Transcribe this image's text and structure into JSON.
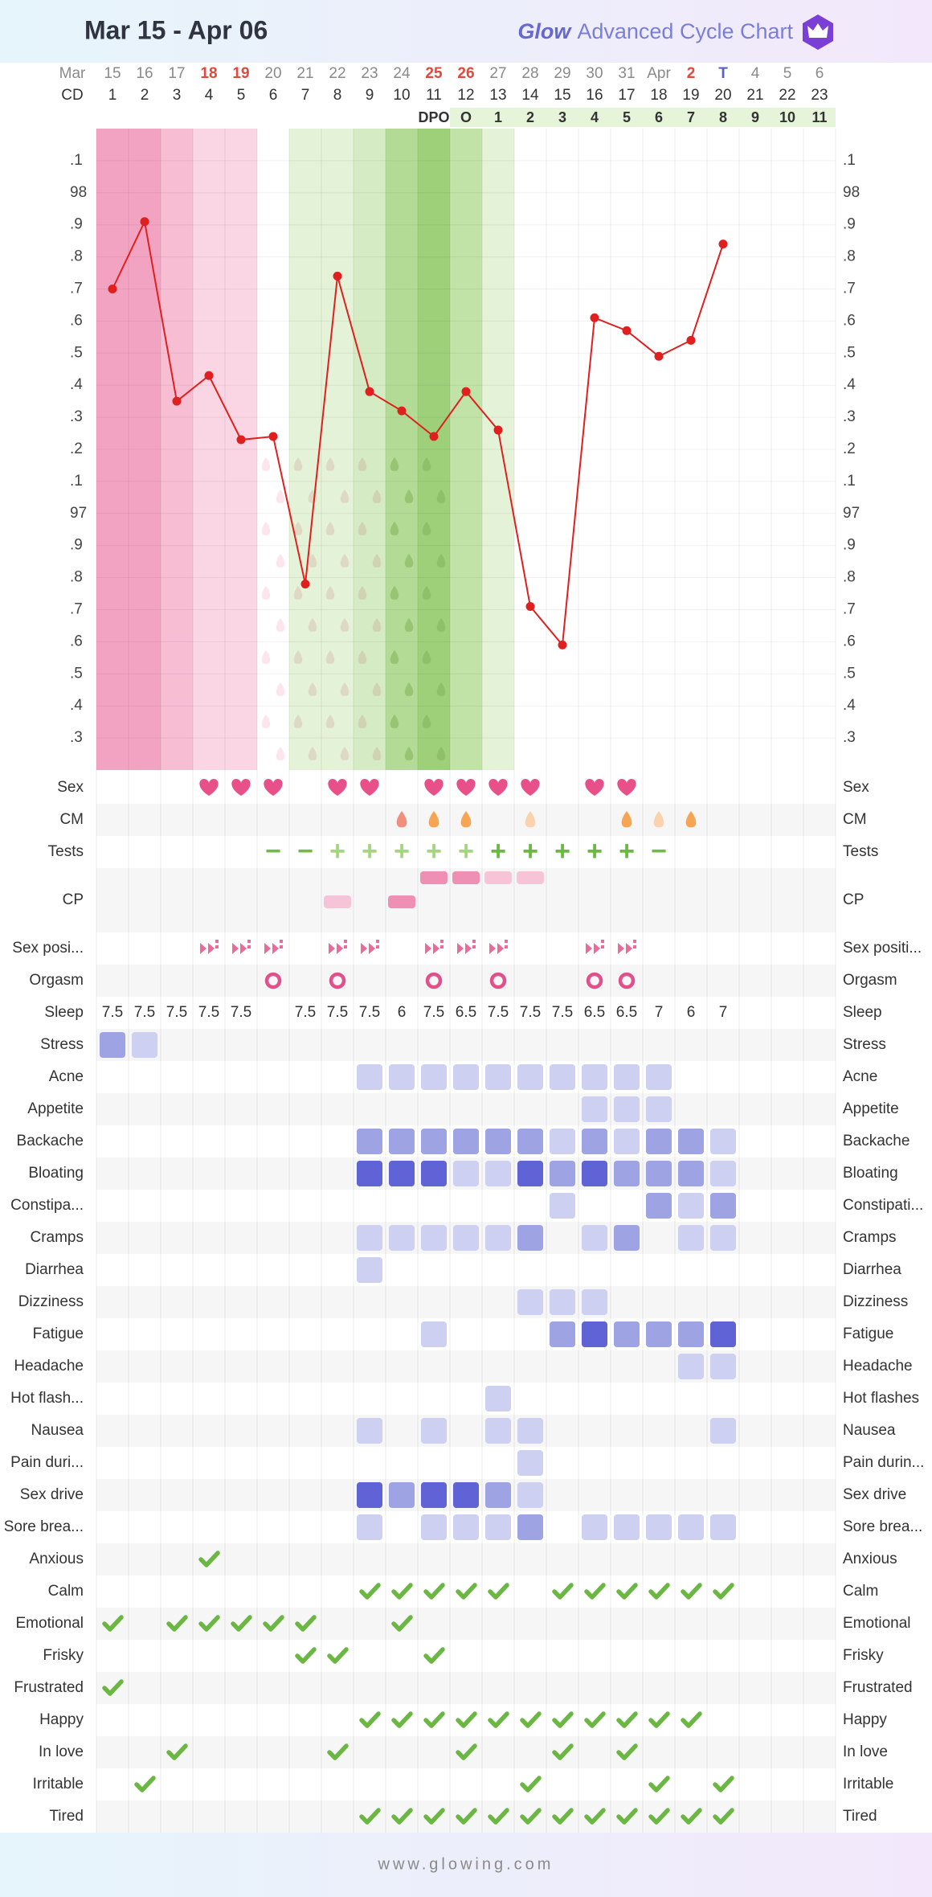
{
  "header": {
    "title": "Mar 15 - Apr 06",
    "brand": "Glow",
    "subtitle": "Advanced Cycle Chart"
  },
  "footer": "www.glowing.com",
  "columns": {
    "month_label": "Mar",
    "dates": [
      "15",
      "16",
      "17",
      "18",
      "19",
      "20",
      "21",
      "22",
      "23",
      "24",
      "25",
      "26",
      "27",
      "28",
      "29",
      "30",
      "31",
      "Apr",
      "2",
      "T",
      "4",
      "5",
      "6"
    ],
    "date_colors": [
      "#8a8a8a",
      "#8a8a8a",
      "#8a8a8a",
      "#e2483b",
      "#e2483b",
      "#8a8a8a",
      "#8a8a8a",
      "#8a8a8a",
      "#8a8a8a",
      "#8a8a8a",
      "#e2483b",
      "#e2483b",
      "#8a8a8a",
      "#8a8a8a",
      "#8a8a8a",
      "#8a8a8a",
      "#8a8a8a",
      "#8a8a8a",
      "#e2483b",
      "#5b5fc7",
      "#8a8a8a",
      "#8a8a8a",
      "#8a8a8a"
    ],
    "cd_label": "CD",
    "cd": [
      1,
      2,
      3,
      4,
      5,
      6,
      7,
      8,
      9,
      10,
      11,
      12,
      13,
      14,
      15,
      16,
      17,
      18,
      19,
      20,
      21,
      22,
      23
    ],
    "dpo_label": "DPO",
    "dpo": [
      null,
      null,
      null,
      null,
      null,
      null,
      null,
      null,
      null,
      null,
      null,
      "O",
      1,
      2,
      3,
      4,
      5,
      6,
      7,
      8,
      9,
      10,
      11
    ]
  },
  "chart_data": {
    "type": "line",
    "color": "#e01f1f",
    "values": [
      97.7,
      97.91,
      97.35,
      97.43,
      97.23,
      97.24,
      96.78,
      97.74,
      97.38,
      97.32,
      97.24,
      97.38,
      97.26,
      96.71,
      96.59,
      97.61,
      97.57,
      97.49,
      97.54,
      97.84,
      null,
      null,
      null
    ],
    "ylim": [
      96.2,
      98.2
    ],
    "yticks": [
      {
        "value": 98.1,
        "label": ".1"
      },
      98,
      {
        "value": 97.9,
        "label": ".9"
      },
      {
        "value": 97.8,
        "label": ".8"
      },
      {
        "value": 97.7,
        "label": ".7"
      },
      {
        "value": 97.6,
        "label": ".6"
      },
      {
        "value": 97.5,
        "label": ".5"
      },
      {
        "value": 97.4,
        "label": ".4"
      },
      {
        "value": 97.3,
        "label": ".3"
      },
      {
        "value": 97.2,
        "label": ".2"
      },
      {
        "value": 97.1,
        "label": ".1"
      },
      97,
      {
        "value": 96.9,
        "label": ".9"
      },
      {
        "value": 96.8,
        "label": ".8"
      },
      {
        "value": 96.7,
        "label": ".7"
      },
      {
        "value": 96.6,
        "label": ".6"
      },
      {
        "value": 96.5,
        "label": ".5"
      },
      {
        "value": 96.4,
        "label": ".4"
      },
      {
        "value": 96.3,
        "label": ".3"
      }
    ],
    "grid": true,
    "phase_colors": [
      "#f3a3c2",
      "#f3a3c2",
      "#f6bdd3",
      "#fad5e3",
      "#fad5e3",
      null,
      "#e4f2d7",
      "#e4f2d7",
      "#d5ebc3",
      "#b3db96",
      "#9dd079",
      "#c1e3a7",
      "#e4f2d7",
      null,
      null,
      null,
      null,
      null,
      null,
      null,
      null,
      null,
      null
    ]
  },
  "sex": {
    "left": "Sex",
    "right": "Sex",
    "color": "#e8508a",
    "days": [
      4,
      5,
      6,
      8,
      9,
      11,
      12,
      13,
      14,
      16,
      17
    ]
  },
  "cm": {
    "left": "CM",
    "right": "CM",
    "entries": [
      {
        "day": 10,
        "color": "#f0907c"
      },
      {
        "day": 11,
        "color": "#f5a553"
      },
      {
        "day": 12,
        "color": "#f5a553"
      },
      {
        "day": 14,
        "color": "#fad2ae"
      },
      {
        "day": 17,
        "color": "#f5a553"
      },
      {
        "day": 18,
        "color": "#fad2ae"
      },
      {
        "day": 19,
        "color": "#f5a553"
      }
    ]
  },
  "tests": {
    "left": "Tests",
    "right": "Tests",
    "entries": [
      {
        "day": 6,
        "sign": "−",
        "color": "#74b84a"
      },
      {
        "day": 7,
        "sign": "−",
        "color": "#74b84a"
      },
      {
        "day": 8,
        "sign": "+",
        "color": "#a5d57f"
      },
      {
        "day": 9,
        "sign": "+",
        "color": "#a5d57f"
      },
      {
        "day": 10,
        "sign": "+",
        "color": "#a5d57f"
      },
      {
        "day": 11,
        "sign": "+",
        "color": "#a5d57f"
      },
      {
        "day": 12,
        "sign": "+",
        "color": "#a5d57f"
      },
      {
        "day": 13,
        "sign": "+",
        "color": "#6ab842"
      },
      {
        "day": 14,
        "sign": "+",
        "color": "#6ab842"
      },
      {
        "day": 15,
        "sign": "+",
        "color": "#6ab842"
      },
      {
        "day": 16,
        "sign": "+",
        "color": "#6ab842"
      },
      {
        "day": 17,
        "sign": "+",
        "color": "#6ab842"
      },
      {
        "day": 18,
        "sign": "−",
        "color": "#74b84a"
      }
    ]
  },
  "cp": {
    "left": "CP",
    "right": "CP",
    "entries": [
      {
        "day": 8,
        "level": 1,
        "color": "#f7c4d7"
      },
      {
        "day": 10,
        "level": 1,
        "color": "#ef8fb4"
      },
      {
        "day": 11,
        "level": 2,
        "color": "#ef8fb4"
      },
      {
        "day": 12,
        "level": 2,
        "color": "#ef8fb4"
      },
      {
        "day": 13,
        "level": 2,
        "color": "#f7c4d7"
      },
      {
        "day": 14,
        "level": 2,
        "color": "#f7c4d7"
      }
    ]
  },
  "sex_positions": {
    "left": "Sex posi...",
    "right": "Sex positi...",
    "color": "#e8508a",
    "days": [
      4,
      5,
      6,
      8,
      9,
      11,
      12,
      13,
      16,
      17
    ]
  },
  "orgasm": {
    "left": "Orgasm",
    "right": "Orgasm",
    "color": "#e0508a",
    "days": [
      6,
      8,
      11,
      13,
      16,
      17
    ]
  },
  "sleep": {
    "left": "Sleep",
    "right": "Sleep",
    "values": [
      7.5,
      7.5,
      7.5,
      7.5,
      7.5,
      null,
      7.5,
      7.5,
      7.5,
      6,
      7.5,
      6.5,
      7.5,
      7.5,
      7.5,
      6.5,
      6.5,
      7,
      6,
      7,
      null,
      null,
      null
    ]
  },
  "symptom_colors": [
    "#cdd0f0",
    "#9ea3e3",
    "#5f63d6"
  ],
  "symptoms": [
    {
      "left": "Stress",
      "right": "Stress",
      "values": [
        2,
        1,
        null,
        null,
        null,
        null,
        null,
        null,
        null,
        null,
        null,
        null,
        null,
        null,
        null,
        null,
        null,
        null,
        null,
        null,
        null,
        null,
        null
      ]
    },
    {
      "left": "Acne",
      "right": "Acne",
      "values": [
        null,
        null,
        null,
        null,
        null,
        null,
        null,
        null,
        1,
        1,
        1,
        1,
        1,
        1,
        1,
        1,
        1,
        1,
        null,
        null,
        null,
        null,
        null
      ]
    },
    {
      "left": "Appetite",
      "right": "Appetite",
      "values": [
        null,
        null,
        null,
        null,
        null,
        null,
        null,
        null,
        null,
        null,
        null,
        null,
        null,
        null,
        null,
        1,
        1,
        1,
        null,
        null,
        null,
        null,
        null
      ]
    },
    {
      "left": "Backache",
      "right": "Backache",
      "values": [
        null,
        null,
        null,
        null,
        null,
        null,
        null,
        null,
        2,
        2,
        2,
        2,
        2,
        2,
        1,
        2,
        1,
        2,
        2,
        1,
        null,
        null,
        null
      ]
    },
    {
      "left": "Bloating",
      "right": "Bloating",
      "values": [
        null,
        null,
        null,
        null,
        null,
        null,
        null,
        null,
        3,
        3,
        3,
        1,
        1,
        3,
        2,
        3,
        2,
        2,
        2,
        1,
        null,
        null,
        null
      ]
    },
    {
      "left": "Constipa...",
      "right": "Constipati...",
      "values": [
        null,
        null,
        null,
        null,
        null,
        null,
        null,
        null,
        null,
        null,
        null,
        null,
        null,
        null,
        1,
        null,
        null,
        2,
        1,
        2,
        null,
        null,
        null
      ]
    },
    {
      "left": "Cramps",
      "right": "Cramps",
      "values": [
        null,
        null,
        null,
        null,
        null,
        null,
        null,
        null,
        1,
        1,
        1,
        1,
        1,
        2,
        null,
        1,
        2,
        null,
        1,
        1,
        null,
        null,
        null
      ]
    },
    {
      "left": "Diarrhea",
      "right": "Diarrhea",
      "values": [
        null,
        null,
        null,
        null,
        null,
        null,
        null,
        null,
        1,
        null,
        null,
        null,
        null,
        null,
        null,
        null,
        null,
        null,
        null,
        null,
        null,
        null,
        null
      ]
    },
    {
      "left": "Dizziness",
      "right": "Dizziness",
      "values": [
        null,
        null,
        null,
        null,
        null,
        null,
        null,
        null,
        null,
        null,
        null,
        null,
        null,
        1,
        1,
        1,
        null,
        null,
        null,
        null,
        null,
        null,
        null
      ]
    },
    {
      "left": "Fatigue",
      "right": "Fatigue",
      "values": [
        null,
        null,
        null,
        null,
        null,
        null,
        null,
        null,
        null,
        null,
        1,
        null,
        null,
        null,
        2,
        3,
        2,
        2,
        2,
        3,
        null,
        null,
        null
      ]
    },
    {
      "left": "Headache",
      "right": "Headache",
      "values": [
        null,
        null,
        null,
        null,
        null,
        null,
        null,
        null,
        null,
        null,
        null,
        null,
        null,
        null,
        null,
        null,
        null,
        null,
        1,
        1,
        null,
        null,
        null
      ]
    },
    {
      "left": "Hot flash...",
      "right": "Hot flashes",
      "values": [
        null,
        null,
        null,
        null,
        null,
        null,
        null,
        null,
        null,
        null,
        null,
        null,
        1,
        null,
        null,
        null,
        null,
        null,
        null,
        null,
        null,
        null,
        null
      ]
    },
    {
      "left": "Nausea",
      "right": "Nausea",
      "values": [
        null,
        null,
        null,
        null,
        null,
        null,
        null,
        null,
        1,
        null,
        1,
        null,
        1,
        1,
        null,
        null,
        null,
        null,
        null,
        1,
        null,
        null,
        null
      ]
    },
    {
      "left": "Pain duri...",
      "right": "Pain durin...",
      "values": [
        null,
        null,
        null,
        null,
        null,
        null,
        null,
        null,
        null,
        null,
        null,
        null,
        null,
        1,
        null,
        null,
        null,
        null,
        null,
        null,
        null,
        null,
        null
      ]
    },
    {
      "left": "Sex drive",
      "right": "Sex drive",
      "values": [
        null,
        null,
        null,
        null,
        null,
        null,
        null,
        null,
        3,
        2,
        3,
        3,
        2,
        1,
        null,
        null,
        null,
        null,
        null,
        null,
        null,
        null,
        null
      ]
    },
    {
      "left": "Sore brea...",
      "right": "Sore brea...",
      "values": [
        null,
        null,
        null,
        null,
        null,
        null,
        null,
        null,
        1,
        null,
        1,
        1,
        1,
        2,
        null,
        1,
        1,
        1,
        1,
        1,
        null,
        null,
        null
      ]
    }
  ],
  "mood_color": "#6ab842",
  "moods": [
    {
      "left": "Anxious",
      "right": "Anxious",
      "days": [
        4
      ]
    },
    {
      "left": "Calm",
      "right": "Calm",
      "days": [
        9,
        10,
        11,
        12,
        13,
        15,
        16,
        17,
        18,
        19,
        20
      ]
    },
    {
      "left": "Emotional",
      "right": "Emotional",
      "days": [
        1,
        3,
        4,
        5,
        6,
        7,
        10
      ]
    },
    {
      "left": "Frisky",
      "right": "Frisky",
      "days": [
        7,
        8,
        11
      ]
    },
    {
      "left": "Frustrated",
      "right": "Frustrated",
      "days": [
        1
      ]
    },
    {
      "left": "Happy",
      "right": "Happy",
      "days": [
        9,
        10,
        11,
        12,
        13,
        14,
        15,
        16,
        17,
        18,
        19
      ]
    },
    {
      "left": "In love",
      "right": "In love",
      "days": [
        3,
        8,
        12,
        15,
        17
      ]
    },
    {
      "left": "Irritable",
      "right": "Irritable",
      "days": [
        2,
        14,
        18,
        20
      ]
    },
    {
      "left": "Tired",
      "right": "Tired",
      "days": [
        9,
        10,
        11,
        12,
        13,
        14,
        15,
        16,
        17,
        18,
        19,
        20
      ]
    }
  ]
}
